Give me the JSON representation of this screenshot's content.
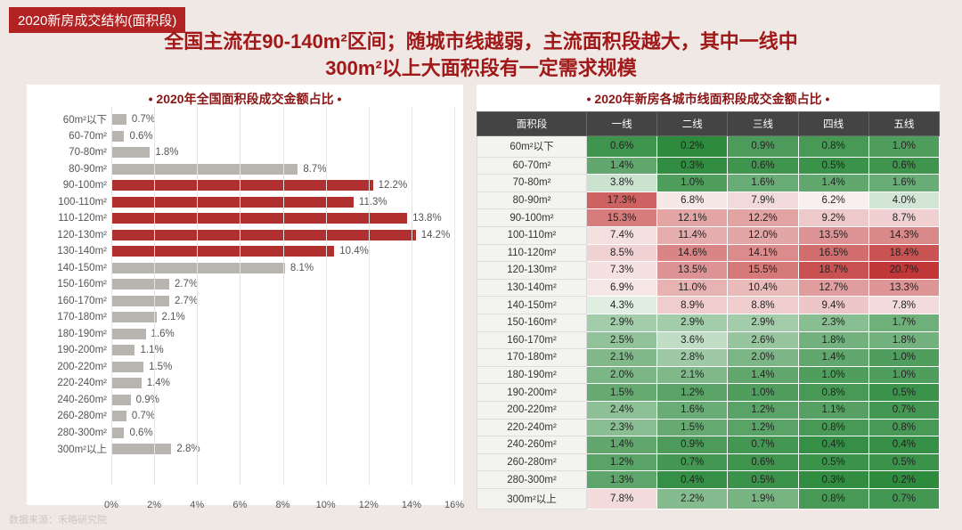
{
  "badge": "2020新房成交结构(面积段)",
  "headline_l1": "全国主流在90-140m²区间；随城市线越弱，主流面积段越大，其中一线中",
  "headline_l2": "300m²以上大面积段有一定需求规模",
  "footer": "数据来源：禾略研究院",
  "colors": {
    "badge_bg": "#b22222",
    "headline": "#a01818",
    "bar_red": "#b03030",
    "bar_grey": "#b8b4b0",
    "grid": "#e8e4e0",
    "table_header_bg": "#444444"
  },
  "bar_chart": {
    "title": "2020年全国面积段成交金额占比",
    "xmax": 16,
    "xtick_step": 2,
    "highlight_color": "#b03030",
    "default_color": "#b8b4b0",
    "categories": [
      "60m²以下",
      "60-70m²",
      "70-80m²",
      "80-90m²",
      "90-100m²",
      "100-110m²",
      "110-120m²",
      "120-130m²",
      "130-140m²",
      "140-150m²",
      "150-160m²",
      "160-170m²",
      "170-180m²",
      "180-190m²",
      "190-200m²",
      "200-220m²",
      "220-240m²",
      "240-260m²",
      "260-280m²",
      "280-300m²",
      "300m²以上"
    ],
    "values": [
      0.7,
      0.6,
      1.8,
      8.7,
      12.2,
      11.3,
      13.8,
      14.2,
      10.4,
      8.1,
      2.7,
      2.7,
      2.1,
      1.6,
      1.1,
      1.5,
      1.4,
      0.9,
      0.7,
      0.6,
      2.8
    ],
    "highlight_idx": [
      4,
      5,
      6,
      7,
      8
    ]
  },
  "heatmap": {
    "title": "2020年新房各城市线面积段成交金额占比",
    "columns": [
      "面积段",
      "一线",
      "二线",
      "三线",
      "四线",
      "五线"
    ],
    "row_labels": [
      "60m²以下",
      "60-70m²",
      "70-80m²",
      "80-90m²",
      "90-100m²",
      "100-110m²",
      "110-120m²",
      "120-130m²",
      "130-140m²",
      "140-150m²",
      "150-160m²",
      "160-170m²",
      "170-180m²",
      "180-190m²",
      "190-200m²",
      "200-220m²",
      "220-240m²",
      "240-260m²",
      "260-280m²",
      "280-300m²",
      "300m²以上"
    ],
    "rows": [
      [
        0.6,
        0.2,
        0.9,
        0.8,
        1.0
      ],
      [
        1.4,
        0.3,
        0.6,
        0.5,
        0.6
      ],
      [
        3.8,
        1.0,
        1.6,
        1.4,
        1.6
      ],
      [
        17.3,
        6.8,
        7.9,
        6.2,
        4.0
      ],
      [
        15.3,
        12.1,
        12.2,
        9.2,
        8.7
      ],
      [
        7.4,
        11.4,
        12.0,
        13.5,
        14.3
      ],
      [
        8.5,
        14.6,
        14.1,
        16.5,
        18.4
      ],
      [
        7.3,
        13.5,
        15.5,
        18.7,
        20.7
      ],
      [
        6.9,
        11.0,
        10.4,
        12.7,
        13.3
      ],
      [
        4.3,
        8.9,
        8.8,
        9.4,
        7.8
      ],
      [
        2.9,
        2.9,
        2.9,
        2.3,
        1.7
      ],
      [
        2.5,
        3.6,
        2.6,
        1.8,
        1.8
      ],
      [
        2.1,
        2.8,
        2.0,
        1.4,
        1.0
      ],
      [
        2.0,
        2.1,
        1.4,
        1.0,
        1.0
      ],
      [
        1.5,
        1.2,
        1.0,
        0.8,
        0.5
      ],
      [
        2.4,
        1.6,
        1.2,
        1.1,
        0.7
      ],
      [
        2.3,
        1.5,
        1.2,
        0.8,
        0.8
      ],
      [
        1.4,
        0.9,
        0.7,
        0.4,
        0.4
      ],
      [
        1.2,
        0.7,
        0.6,
        0.5,
        0.5
      ],
      [
        1.3,
        0.4,
        0.5,
        0.3,
        0.2
      ],
      [
        7.8,
        2.2,
        1.9,
        0.8,
        0.7
      ]
    ],
    "color_scale": {
      "min": 0.2,
      "mid": 5.0,
      "max": 21.0,
      "min_color": "#2e8b3e",
      "mid_color": "#ffffff",
      "max_color": "#c03434"
    }
  }
}
